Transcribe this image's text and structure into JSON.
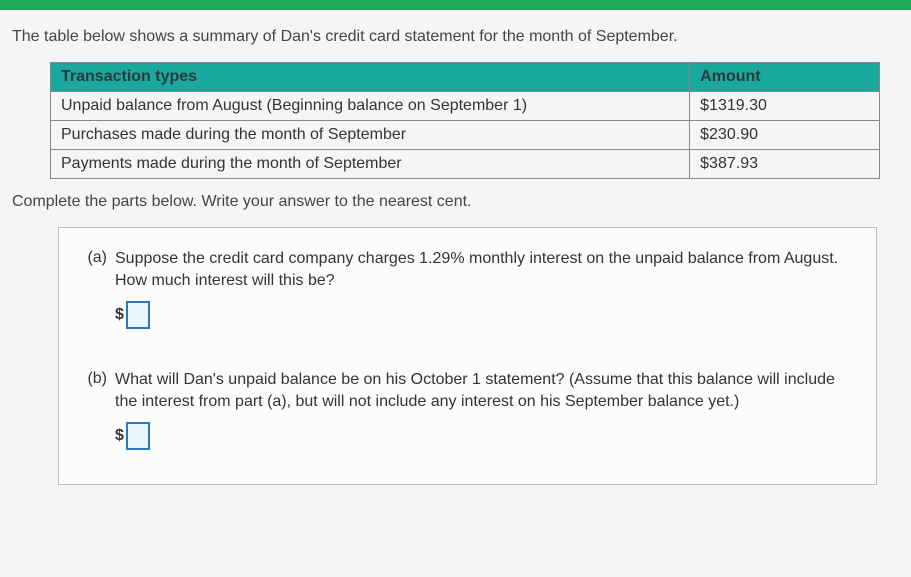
{
  "colors": {
    "topbar": "#1faa59",
    "table_header_bg": "#1aa89e",
    "table_border": "#888888",
    "box_border": "#bcbcbc",
    "input_border": "#2a7aaf",
    "input_bg": "#eaf4fb",
    "text": "#3a3a3a"
  },
  "intro": "The table below shows a summary of Dan's credit card statement for the month of September.",
  "table": {
    "headers": {
      "type": "Transaction types",
      "amount": "Amount"
    },
    "rows": [
      {
        "type": "Unpaid balance from August (Beginning balance on September 1)",
        "amount": "$1319.30"
      },
      {
        "type": "Purchases made during the month of September",
        "amount": "$230.90"
      },
      {
        "type": "Payments made during the month of September",
        "amount": "$387.93"
      }
    ]
  },
  "instruction": "Complete the parts below. Write your answer to the nearest cent.",
  "questions": {
    "a": {
      "label": "(a)",
      "text": "Suppose the credit card company charges 1.29% monthly interest on the unpaid balance from August. How much interest will this be?",
      "currency": "$",
      "value": ""
    },
    "b": {
      "label": "(b)",
      "text": "What will Dan's unpaid balance be on his October 1 statement? (Assume that this balance will include the interest from part (a), but will not include any interest on his September balance yet.)",
      "currency": "$",
      "value": ""
    }
  }
}
